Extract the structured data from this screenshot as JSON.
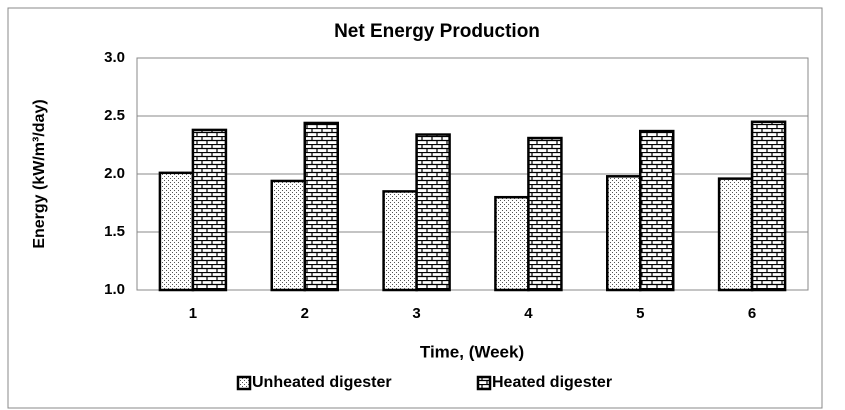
{
  "chart_data": {
    "type": "bar",
    "title": "Net Energy Production",
    "xlabel": "Time, (Week)",
    "ylabel": "Energy (kW/m³/day)",
    "categories": [
      "1",
      "2",
      "3",
      "4",
      "5",
      "6"
    ],
    "series": [
      {
        "name": "Unheated digester",
        "color": "#000000",
        "values": [
          2.01,
          1.94,
          1.85,
          1.8,
          1.98,
          1.96
        ]
      },
      {
        "name": "Heated digester",
        "color": "#000000",
        "values": [
          2.38,
          2.44,
          2.34,
          2.31,
          2.37,
          2.45
        ]
      }
    ],
    "ylim": [
      1.0,
      3.0
    ],
    "yticks": [
      {
        "value": 1.0,
        "label": "1.0"
      },
      1.5,
      {
        "value": 2.0,
        "label": "2.0"
      },
      2.5,
      {
        "value": 3.0,
        "label": "3.0"
      }
    ],
    "grid": true,
    "legend": "bottom"
  }
}
